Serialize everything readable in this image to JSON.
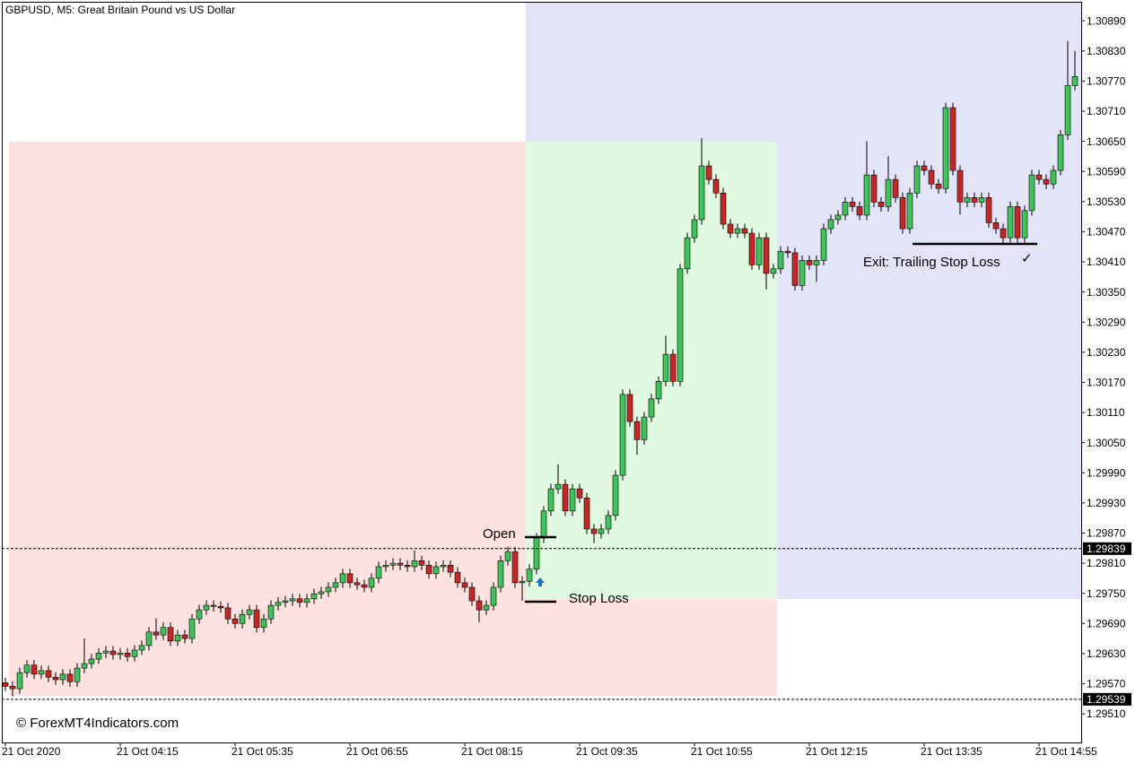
{
  "title": "GBPUSD, M5:  Great Britain Pound vs US Dollar",
  "watermark": "© ForexMT4Indicators.com",
  "annotations": {
    "open": "Open",
    "stop_loss": "Stop Loss",
    "exit": "Exit: Trailing Stop Loss",
    "check": "✓"
  },
  "chart_data": {
    "type": "candlestick",
    "up_color": "#3fc25a",
    "down_color": "#c62828",
    "wick_color": "#000000",
    "categories": [
      "21 Oct 2020",
      null,
      null,
      null,
      null,
      null,
      null,
      null,
      null,
      null,
      null,
      null,
      null,
      null,
      null,
      null,
      "21 Oct 04:15",
      null,
      null,
      null,
      null,
      null,
      null,
      null,
      null,
      null,
      null,
      null,
      null,
      null,
      null,
      null,
      "21 Oct 05:35",
      null,
      null,
      null,
      null,
      null,
      null,
      null,
      null,
      null,
      null,
      null,
      null,
      null,
      null,
      null,
      "21 Oct 06:55",
      null,
      null,
      null,
      null,
      null,
      null,
      null,
      null,
      null,
      null,
      null,
      null,
      null,
      null,
      null,
      "21 Oct 08:15",
      null,
      null,
      null,
      null,
      null,
      null,
      null,
      null,
      null,
      null,
      null,
      null,
      null,
      null,
      null,
      "21 Oct 09:35",
      null,
      null,
      null,
      null,
      null,
      null,
      null,
      null,
      null,
      null,
      null,
      null,
      null,
      null,
      null,
      "21 Oct 10:55",
      null,
      null,
      null,
      null,
      null,
      null,
      null,
      null,
      null,
      null,
      null,
      null,
      null,
      null,
      null,
      "21 Oct 12:15",
      null,
      null,
      null,
      null,
      null,
      null,
      null,
      null,
      null,
      null,
      null,
      null,
      null,
      null,
      null,
      "21 Oct 13:35",
      null,
      null,
      null,
      null,
      null,
      null,
      null,
      null,
      null,
      null,
      null,
      null,
      null,
      null,
      null,
      "21 Oct 14:55",
      null,
      null,
      null,
      null,
      null
    ],
    "open": [
      1.29572,
      1.29565,
      1.2956,
      1.29592,
      1.29607,
      1.29589,
      1.29596,
      1.29583,
      1.29578,
      1.29589,
      1.29574,
      1.29601,
      1.2961,
      1.29619,
      1.29631,
      1.29635,
      1.29628,
      1.29631,
      1.29624,
      1.29637,
      1.29646,
      1.29673,
      1.29667,
      1.29682,
      1.29655,
      1.29667,
      1.2966,
      1.29699,
      1.29717,
      1.29726,
      1.29724,
      1.29721,
      1.29699,
      1.2969,
      1.29708,
      1.29717,
      1.29682,
      1.29699,
      1.29726,
      1.29732,
      1.29735,
      1.29739,
      1.29732,
      1.29739,
      1.29749,
      1.29753,
      1.29762,
      1.29771,
      1.29789,
      1.29771,
      1.29767,
      1.29762,
      1.2978,
      1.29803,
      1.29806,
      1.2981,
      1.29806,
      1.29803,
      1.29815,
      1.29806,
      1.29789,
      1.29803,
      1.29806,
      1.29792,
      1.29771,
      1.29762,
      1.29735,
      1.29717,
      1.29726,
      1.29762,
      1.29815,
      1.29833,
      1.29771,
      1.29774,
      1.29798,
      1.2986,
      1.29914,
      1.29958,
      1.29967,
      1.29914,
      1.29958,
      1.2994,
      1.29878,
      1.29869,
      1.29878,
      1.29905,
      1.29985,
      1.30146,
      1.30092,
      1.30056,
      1.30101,
      1.30137,
      1.30172,
      1.30226,
      1.30172,
      1.30396,
      1.30458,
      1.30494,
      1.30601,
      1.30574,
      1.30547,
      1.30485,
      1.30467,
      1.30476,
      1.30467,
      1.30404,
      1.30458,
      1.30387,
      1.30396,
      1.30431,
      1.30428,
      1.30363,
      1.30413,
      1.30404,
      1.30413,
      1.30476,
      1.30494,
      1.30503,
      1.30529,
      1.3052,
      1.30503,
      1.30583,
      1.30529,
      1.3052,
      1.30574,
      1.30538,
      1.30476,
      1.30547,
      1.30601,
      1.30592,
      1.30565,
      1.30556,
      1.30717,
      1.30592,
      1.30529,
      1.30538,
      1.30529,
      1.30538,
      1.30488,
      1.30476,
      1.30458,
      1.3052,
      1.30458,
      1.30512,
      1.30583,
      1.30574,
      1.30565,
      1.30592,
      1.30663,
      1.30761
    ],
    "high": [
      1.29582,
      1.29575,
      1.29602,
      1.29617,
      1.29617,
      1.29606,
      1.29606,
      1.29593,
      1.29599,
      1.29599,
      1.29611,
      1.2966,
      1.29629,
      1.29641,
      1.29645,
      1.29645,
      1.29641,
      1.29641,
      1.29647,
      1.29656,
      1.29683,
      1.297,
      1.29692,
      1.29692,
      1.29677,
      1.29677,
      1.29709,
      1.29727,
      1.29736,
      1.29736,
      1.29734,
      1.29731,
      1.29709,
      1.29718,
      1.29727,
      1.29727,
      1.29709,
      1.29736,
      1.29742,
      1.29745,
      1.29749,
      1.29749,
      1.29749,
      1.29759,
      1.29763,
      1.29772,
      1.29781,
      1.29799,
      1.29799,
      1.29781,
      1.29777,
      1.2979,
      1.29813,
      1.29816,
      1.2982,
      1.2982,
      1.29816,
      1.29835,
      1.29825,
      1.29816,
      1.29813,
      1.29816,
      1.29816,
      1.29802,
      1.29781,
      1.29772,
      1.29745,
      1.29736,
      1.29772,
      1.29825,
      1.29843,
      1.29843,
      1.29784,
      1.29808,
      1.2987,
      1.29924,
      1.29968,
      1.30007,
      1.29977,
      1.29968,
      1.29968,
      1.2995,
      1.29888,
      1.29888,
      1.29915,
      1.29995,
      1.30156,
      1.30156,
      1.30102,
      1.30111,
      1.30147,
      1.30182,
      1.30263,
      1.30236,
      1.30406,
      1.30468,
      1.30504,
      1.30656,
      1.30611,
      1.30584,
      1.30557,
      1.30495,
      1.30486,
      1.30486,
      1.30477,
      1.30468,
      1.30468,
      1.30406,
      1.30441,
      1.30441,
      1.30438,
      1.30423,
      1.30423,
      1.30423,
      1.30486,
      1.30504,
      1.30513,
      1.30539,
      1.30539,
      1.3053,
      1.3065,
      1.30593,
      1.30539,
      1.3062,
      1.30584,
      1.30548,
      1.30557,
      1.30611,
      1.30611,
      1.30602,
      1.30575,
      1.30727,
      1.30727,
      1.30602,
      1.30548,
      1.30548,
      1.30548,
      1.30548,
      1.30498,
      1.30486,
      1.3053,
      1.3053,
      1.30522,
      1.30593,
      1.30593,
      1.30584,
      1.30602,
      1.30673,
      1.3085,
      1.3083
    ],
    "low": [
      1.29555,
      1.29545,
      1.2955,
      1.29582,
      1.29579,
      1.29579,
      1.29573,
      1.29568,
      1.29568,
      1.29564,
      1.29564,
      1.29591,
      1.296,
      1.29609,
      1.29621,
      1.29618,
      1.29618,
      1.29614,
      1.29614,
      1.29627,
      1.29636,
      1.29657,
      1.29657,
      1.29645,
      1.29645,
      1.2965,
      1.2965,
      1.29689,
      1.29707,
      1.29714,
      1.29711,
      1.29689,
      1.2968,
      1.2968,
      1.29698,
      1.29672,
      1.29672,
      1.29689,
      1.29716,
      1.29722,
      1.29725,
      1.29722,
      1.29722,
      1.29729,
      1.29739,
      1.29743,
      1.29752,
      1.29761,
      1.29761,
      1.29757,
      1.29752,
      1.29752,
      1.2977,
      1.29793,
      1.29796,
      1.29796,
      1.29793,
      1.29793,
      1.29796,
      1.29779,
      1.29779,
      1.29793,
      1.29782,
      1.29761,
      1.29752,
      1.29725,
      1.29692,
      1.29707,
      1.29716,
      1.29752,
      1.29805,
      1.29761,
      1.29735,
      1.29764,
      1.29788,
      1.2985,
      1.29904,
      1.29948,
      1.29904,
      1.29904,
      1.2993,
      1.29868,
      1.2985,
      1.29859,
      1.29868,
      1.29895,
      1.29975,
      1.30082,
      1.30026,
      1.30046,
      1.30091,
      1.30127,
      1.30162,
      1.30162,
      1.30162,
      1.30386,
      1.30448,
      1.30484,
      1.30564,
      1.30537,
      1.30475,
      1.30457,
      1.30457,
      1.30457,
      1.30394,
      1.30394,
      1.30355,
      1.30377,
      1.30386,
      1.30418,
      1.30353,
      1.30353,
      1.30394,
      1.3037,
      1.30403,
      1.30466,
      1.30484,
      1.30493,
      1.3051,
      1.30493,
      1.30493,
      1.30519,
      1.3051,
      1.3051,
      1.30528,
      1.30466,
      1.30466,
      1.30537,
      1.30582,
      1.30555,
      1.30546,
      1.30546,
      1.30582,
      1.30504,
      1.30519,
      1.30519,
      1.30519,
      1.30478,
      1.30466,
      1.30448,
      1.30448,
      1.30448,
      1.30448,
      1.30502,
      1.30564,
      1.30555,
      1.30555,
      1.30582,
      1.30653,
      1.30751
    ],
    "close": [
      1.29565,
      1.2956,
      1.29592,
      1.29607,
      1.29589,
      1.29596,
      1.29583,
      1.29578,
      1.29589,
      1.29574,
      1.29601,
      1.2961,
      1.29619,
      1.29631,
      1.29635,
      1.29628,
      1.29631,
      1.29624,
      1.29637,
      1.29646,
      1.29673,
      1.29667,
      1.29682,
      1.29655,
      1.29667,
      1.2966,
      1.29699,
      1.29717,
      1.29726,
      1.29724,
      1.29721,
      1.29699,
      1.2969,
      1.29708,
      1.29717,
      1.29682,
      1.29699,
      1.29726,
      1.29732,
      1.29735,
      1.29739,
      1.29732,
      1.29739,
      1.29749,
      1.29753,
      1.29762,
      1.29771,
      1.29789,
      1.29771,
      1.29767,
      1.29762,
      1.2978,
      1.29803,
      1.29806,
      1.2981,
      1.29806,
      1.29803,
      1.29815,
      1.29806,
      1.29789,
      1.29803,
      1.29806,
      1.29792,
      1.29771,
      1.29762,
      1.29735,
      1.29717,
      1.29726,
      1.29762,
      1.29815,
      1.29833,
      1.29771,
      1.29774,
      1.29798,
      1.2986,
      1.29914,
      1.29958,
      1.29967,
      1.29914,
      1.29958,
      1.2994,
      1.29878,
      1.29869,
      1.29878,
      1.29905,
      1.29985,
      1.30146,
      1.30092,
      1.30056,
      1.30101,
      1.30137,
      1.30172,
      1.30226,
      1.30172,
      1.30396,
      1.30458,
      1.30494,
      1.30601,
      1.30574,
      1.30547,
      1.30485,
      1.30467,
      1.30476,
      1.30467,
      1.30404,
      1.30458,
      1.30387,
      1.30396,
      1.30431,
      1.30428,
      1.30363,
      1.30413,
      1.30404,
      1.30413,
      1.30476,
      1.30494,
      1.30503,
      1.30529,
      1.3052,
      1.30503,
      1.30583,
      1.30529,
      1.3052,
      1.30574,
      1.30538,
      1.30476,
      1.30547,
      1.30601,
      1.30592,
      1.30565,
      1.30556,
      1.30717,
      1.30592,
      1.30529,
      1.30538,
      1.30529,
      1.30538,
      1.30488,
      1.30476,
      1.30458,
      1.3052,
      1.30458,
      1.30512,
      1.30583,
      1.30574,
      1.30565,
      1.30592,
      1.30663,
      1.30761,
      1.30779
    ],
    "ylim": [
      1.29453,
      1.30926
    ],
    "yticks": [
      {
        "value": 1.3089,
        "label": "1.30890"
      },
      {
        "value": 1.3083,
        "label": "1.30830"
      },
      {
        "value": 1.3077,
        "label": "1.30770"
      },
      {
        "value": 1.3071,
        "label": "1.30710"
      },
      {
        "value": 1.3065,
        "label": "1.30650"
      },
      {
        "value": 1.3059,
        "label": "1.30590"
      },
      {
        "value": 1.3053,
        "label": "1.30530"
      },
      {
        "value": 1.3047,
        "label": "1.30470"
      },
      {
        "value": 1.3041,
        "label": "1.30410"
      },
      {
        "value": 1.3035,
        "label": "1.30350"
      },
      {
        "value": 1.3029,
        "label": "1.30290"
      },
      {
        "value": 1.3023,
        "label": "1.30230"
      },
      {
        "value": 1.3017,
        "label": "1.30170"
      },
      {
        "value": 1.3011,
        "label": "1.30110"
      },
      {
        "value": 1.3005,
        "label": "1.30050"
      },
      {
        "value": 1.2999,
        "label": "1.29990"
      },
      {
        "value": 1.2993,
        "label": "1.29930"
      },
      {
        "value": 1.2987,
        "label": "1.29870"
      },
      {
        "value": 1.2981,
        "label": "1.29810"
      },
      {
        "value": 1.2975,
        "label": "1.29750"
      },
      {
        "value": 1.2969,
        "label": "1.29690"
      },
      {
        "value": 1.2963,
        "label": "1.29630"
      },
      {
        "value": 1.2957,
        "label": "1.29570"
      },
      {
        "value": 1.2951,
        "label": "1.29510"
      }
    ],
    "hlines": [
      {
        "value": 1.29839,
        "label": "1.29839"
      },
      {
        "value": 1.29539,
        "label": "1.29539"
      }
    ],
    "grid": false
  }
}
